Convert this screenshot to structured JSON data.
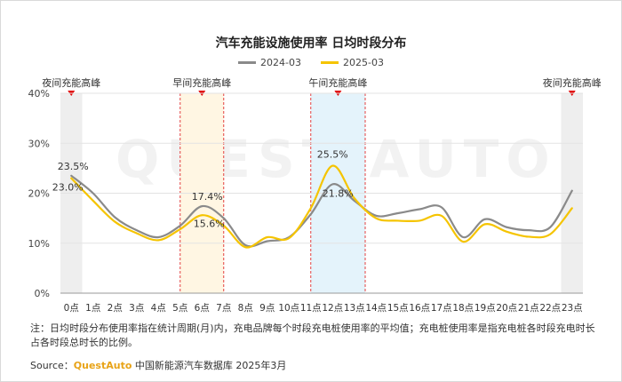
{
  "title": "汽车充能设施使用率 日均时段分布",
  "colors": {
    "series_2024": "#8a8a8a",
    "series_2025": "#f5c400",
    "peak_marker": "#e00000"
  },
  "watermark": "QUEST AUTO",
  "note": "注：日均时段分布使用率指在统计周期(月)内，充电品牌每个时段充电桩使用率的平均值；充电桩使用率是指充电桩各时段充电时长占各时段总时长的比例。",
  "source": {
    "prefix": "Source：",
    "brand": "QuestAuto",
    "text": " 中国新能源汽车数据库 2025年3月"
  },
  "chart_data": {
    "type": "line",
    "title": "汽车充能设施使用率 日均时段分布",
    "categories": [
      "0点",
      "1点",
      "2点",
      "3点",
      "4点",
      "5点",
      "6点",
      "7点",
      "8点",
      "9点",
      "10点",
      "11点",
      "12点",
      "13点",
      "14点",
      "15点",
      "16点",
      "17点",
      "18点",
      "19点",
      "20点",
      "21点",
      "22点",
      "23点"
    ],
    "series": [
      {
        "name": "2024-03",
        "color": "#8a8a8a",
        "values": [
          23.5,
          20.0,
          15.2,
          12.6,
          11.2,
          13.5,
          17.4,
          15.0,
          9.6,
          10.4,
          11.2,
          15.8,
          21.8,
          18.5,
          15.5,
          16.0,
          16.8,
          17.2,
          11.2,
          14.8,
          13.2,
          12.6,
          13.2,
          20.5
        ]
      },
      {
        "name": "2025-03",
        "color": "#f5c400",
        "values": [
          23.0,
          18.5,
          14.3,
          12.0,
          10.6,
          12.8,
          15.6,
          13.5,
          9.2,
          11.2,
          11.0,
          17.0,
          25.5,
          19.0,
          15.0,
          14.5,
          14.5,
          15.5,
          10.3,
          13.8,
          12.3,
          11.3,
          11.8,
          17.0
        ]
      }
    ],
    "ylim": [
      0,
      40
    ],
    "yticks": [
      "0%",
      "10%",
      "20%",
      "30%",
      "40%"
    ],
    "grid": true,
    "legend_position": "top-center",
    "data_labels": [
      {
        "series": 0,
        "index": 0,
        "text": "23.5%"
      },
      {
        "series": 1,
        "index": 0,
        "text": "23.0%"
      },
      {
        "series": 0,
        "index": 6,
        "text": "17.4%"
      },
      {
        "series": 1,
        "index": 6,
        "text": "15.6%"
      },
      {
        "series": 1,
        "index": 12,
        "text": "25.5%"
      },
      {
        "series": 0,
        "index": 12,
        "text": "21.8%"
      }
    ],
    "bands": [
      {
        "label": "夜间充能高峰",
        "from": -0.5,
        "to": 0.5,
        "style": "gray"
      },
      {
        "label": "早间充能高峰",
        "from": 5.0,
        "to": 7.0,
        "style": "orange"
      },
      {
        "label": "午间充能高峰",
        "from": 11.0,
        "to": 13.5,
        "style": "blue"
      },
      {
        "label": "夜间充能高峰",
        "from": 22.5,
        "to": 23.5,
        "style": "gray"
      }
    ]
  }
}
